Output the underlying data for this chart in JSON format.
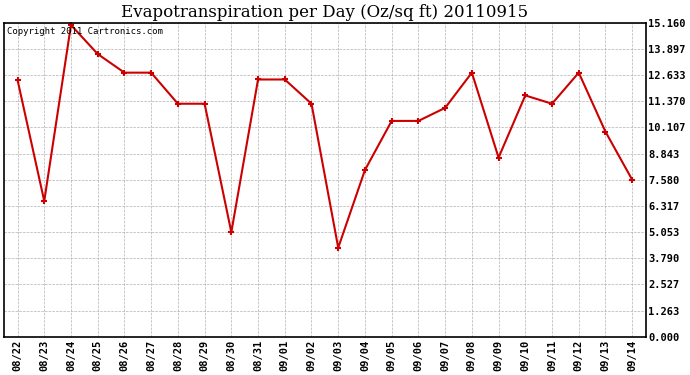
{
  "title": "Evapotranspiration per Day (Oz/sq ft) 20110915",
  "copyright": "Copyright 2011 Cartronics.com",
  "x_labels": [
    "08/22",
    "08/23",
    "08/24",
    "08/25",
    "08/26",
    "08/27",
    "08/28",
    "08/29",
    "08/30",
    "08/31",
    "09/01",
    "09/02",
    "09/03",
    "09/04",
    "09/05",
    "09/06",
    "09/07",
    "09/08",
    "09/09",
    "09/10",
    "09/11",
    "09/12",
    "09/13",
    "09/14"
  ],
  "y_values": [
    12.4,
    6.55,
    15.05,
    13.65,
    12.75,
    12.75,
    11.25,
    11.25,
    5.05,
    12.42,
    12.42,
    11.25,
    4.3,
    8.05,
    10.42,
    10.42,
    11.05,
    12.75,
    8.65,
    11.65,
    11.25,
    12.75,
    9.9,
    7.58
  ],
  "line_color": "#cc0000",
  "marker": "+",
  "marker_size": 5,
  "line_width": 1.5,
  "marker_edge_width": 1.5,
  "y_ticks": [
    0.0,
    1.263,
    2.527,
    3.79,
    5.053,
    6.317,
    7.58,
    8.843,
    10.107,
    11.37,
    12.633,
    13.897,
    15.16
  ],
  "y_min": 0.0,
  "y_max": 15.16,
  "bg_color": "#ffffff",
  "grid_color": "#aaaaaa",
  "title_fontsize": 12,
  "copyright_fontsize": 6.5,
  "tick_fontsize": 7.5,
  "tick_font": "monospace"
}
